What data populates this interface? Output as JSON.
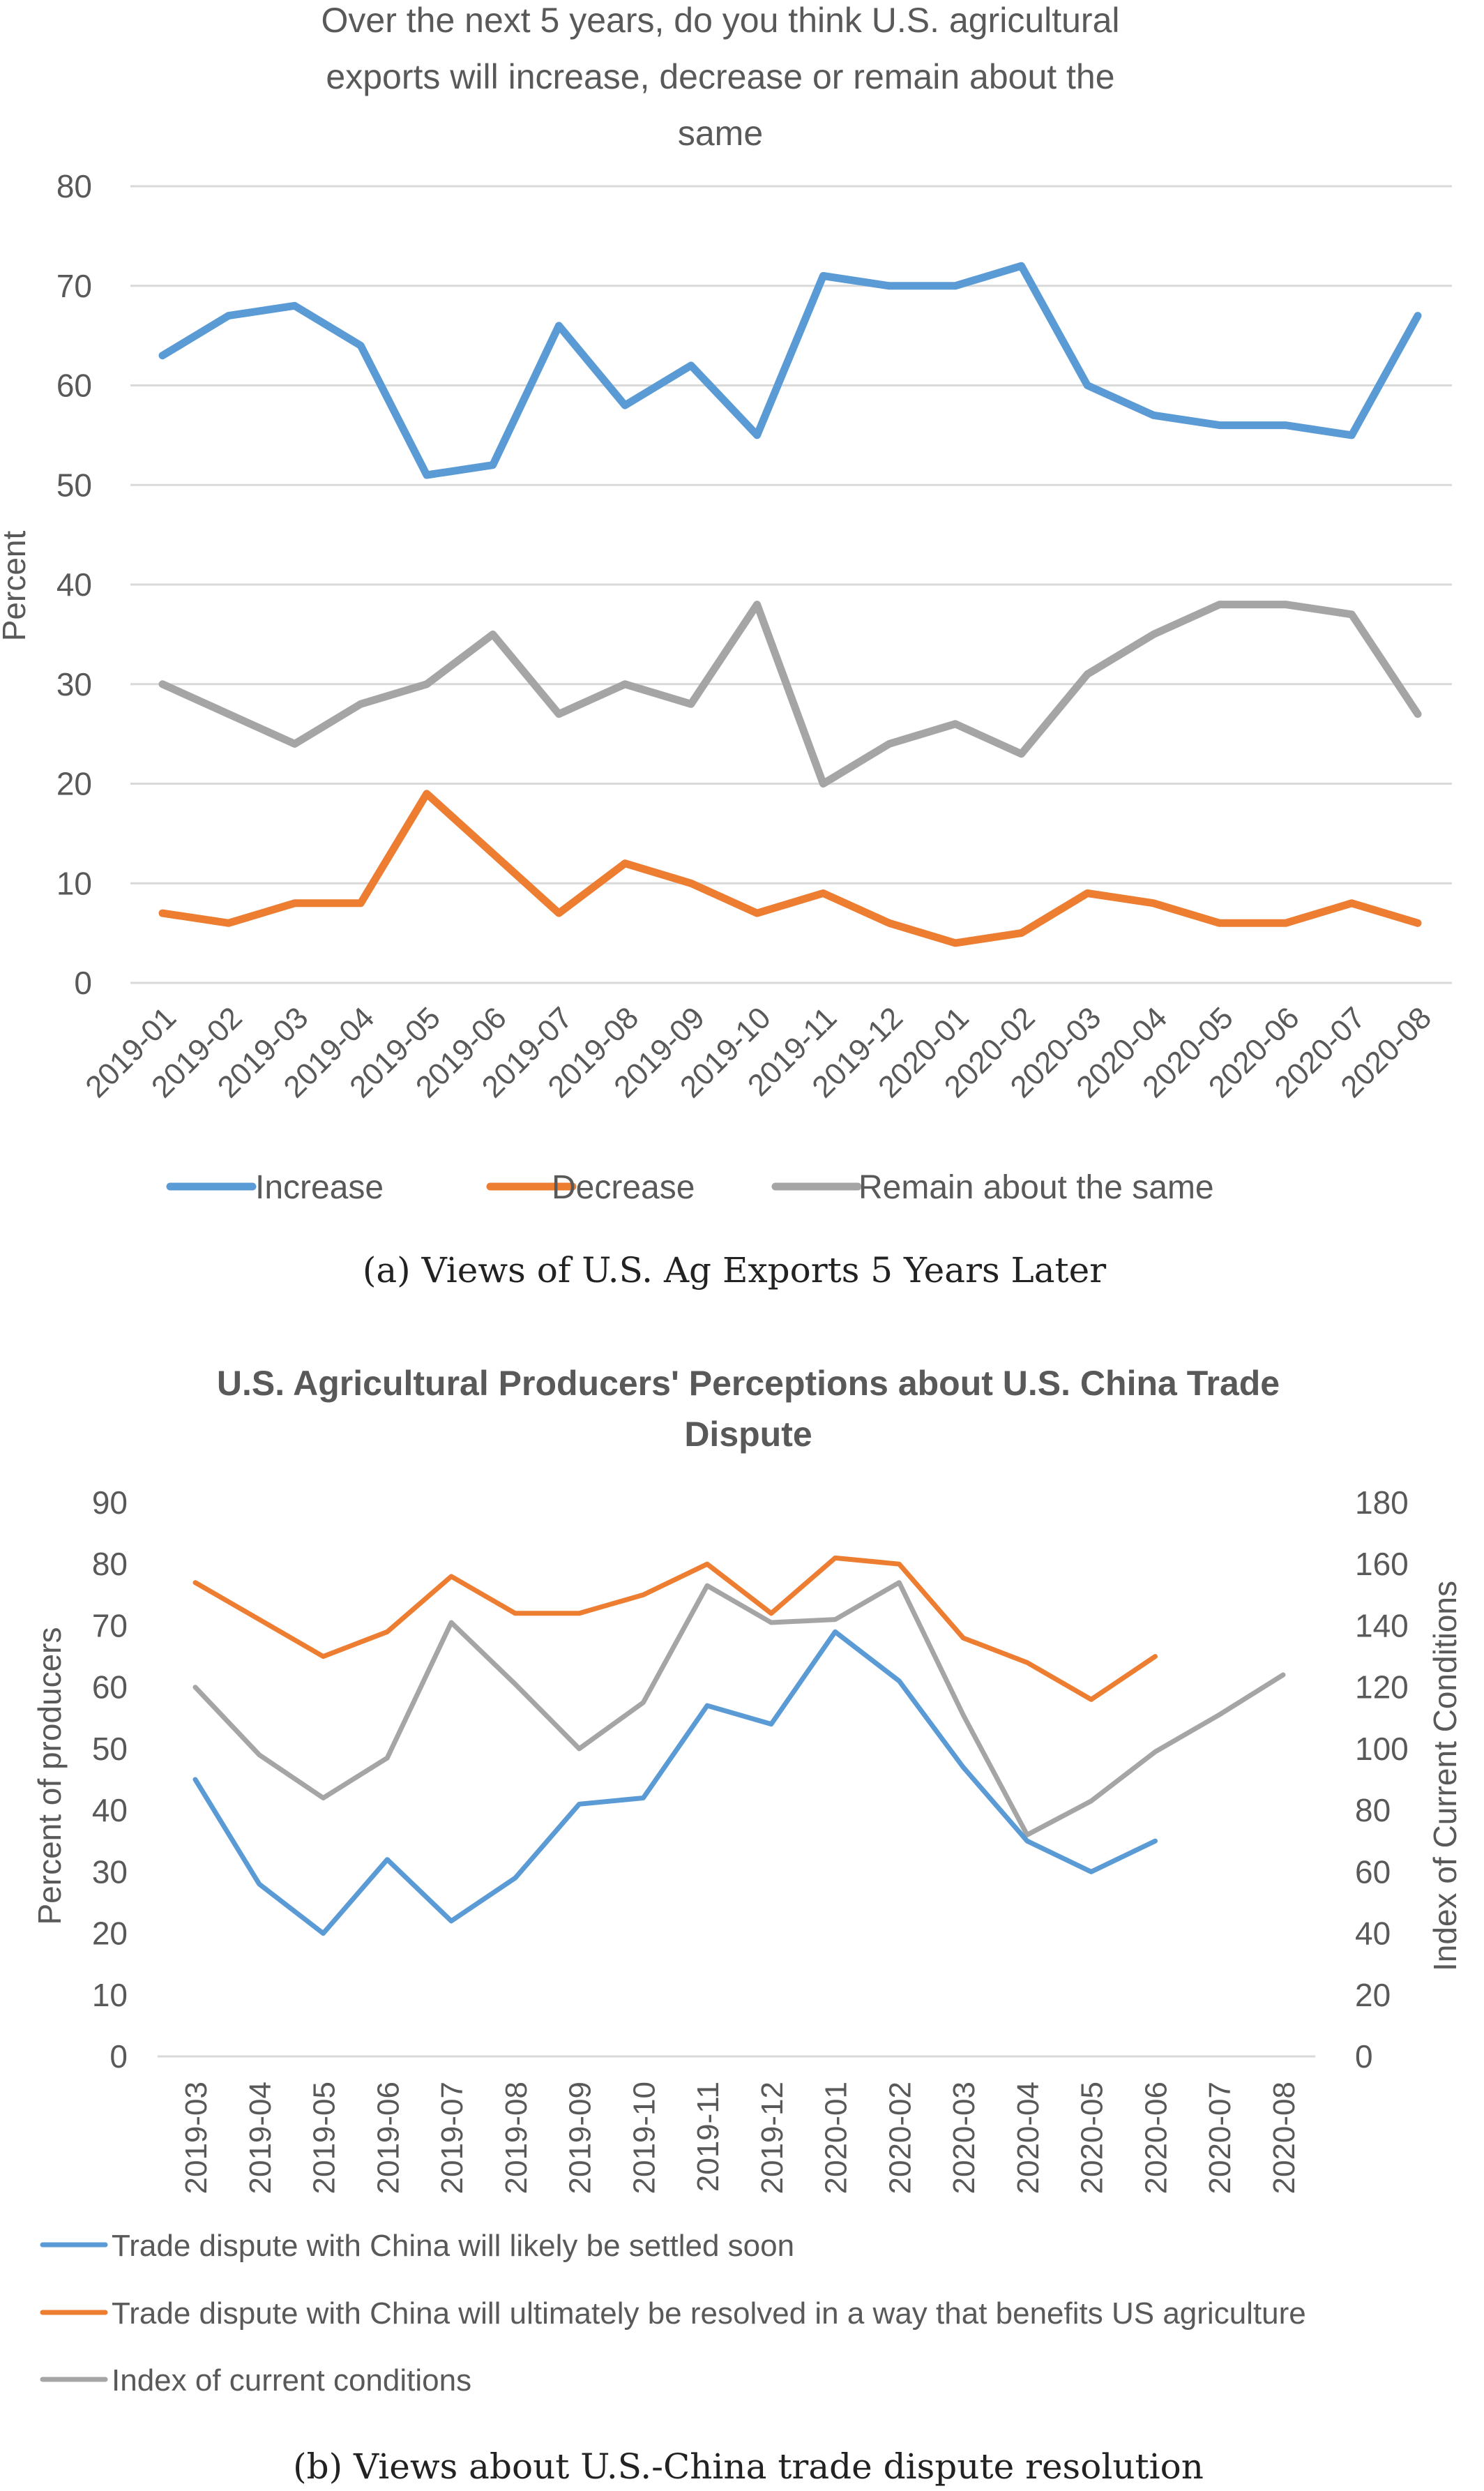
{
  "chart_data": [
    {
      "type": "line",
      "title_lines": [
        "Over the next 5 years, do you think U.S. agricultural",
        "exports will increase, decrease or remain about the",
        "same"
      ],
      "ylabel": "Percent",
      "ylim": [
        0,
        80
      ],
      "yticks": [
        "0",
        "10",
        "20",
        "30",
        "40",
        "50",
        "60",
        "70",
        "80"
      ],
      "categories": [
        "2019-01",
        "2019-02",
        "2019-03",
        "2019-04",
        "2019-05",
        "2019-06",
        "2019-07",
        "2019-08",
        "2019-09",
        "2019-10",
        "2019-11",
        "2019-12",
        "2020-01",
        "2020-02",
        "2020-03",
        "2020-04",
        "2020-05",
        "2020-06",
        "2020-07",
        "2020-08"
      ],
      "series": [
        {
          "name": "Increase",
          "color": "#5b9bd5",
          "values": [
            63,
            67,
            68,
            64,
            51,
            52,
            66,
            58,
            62,
            55,
            71,
            70,
            70,
            72,
            60,
            57,
            56,
            56,
            55,
            67
          ]
        },
        {
          "name": "Decrease",
          "color": "#ed7d31",
          "values": [
            7,
            6,
            8,
            8,
            19,
            13,
            7,
            12,
            10,
            7,
            9,
            6,
            4,
            5,
            9,
            8,
            6,
            6,
            8,
            6
          ]
        },
        {
          "name": "Remain about the same",
          "color": "#a5a5a5",
          "values": [
            30,
            27,
            24,
            28,
            30,
            35,
            27,
            30,
            28,
            38,
            20,
            24,
            26,
            23,
            31,
            35,
            38,
            38,
            37,
            27
          ]
        }
      ],
      "legend_position": "bottom",
      "grid": true,
      "caption": "(a) Views of U.S. Ag Exports 5 Years Later"
    },
    {
      "type": "line",
      "title_lines": [
        "U.S. Agricultural Producers' Perceptions about U.S. China Trade",
        "Dispute"
      ],
      "ylabel": "Percent of producers",
      "ylabel_right": "Index of Current Conditions",
      "ylim": [
        0,
        90
      ],
      "ylim_right": [
        0,
        180
      ],
      "yticks": [
        "0",
        "10",
        "20",
        "30",
        "40",
        "50",
        "60",
        "70",
        "80",
        "90"
      ],
      "yticks_right": [
        "0",
        "20",
        "40",
        "60",
        "80",
        "100",
        "120",
        "140",
        "160",
        "180"
      ],
      "categories": [
        "2019-03",
        "2019-04",
        "2019-05",
        "2019-06",
        "2019-07",
        "2019-08",
        "2019-09",
        "2019-10",
        "2019-11",
        "2019-12",
        "2020-01",
        "2020-02",
        "2020-03",
        "2020-04",
        "2020-05",
        "2020-06",
        "2020-07",
        "2020-08"
      ],
      "series": [
        {
          "name": "Trade dispute with China will likely be settled soon",
          "color": "#5b9bd5",
          "axis": "left",
          "values": [
            45,
            28,
            20,
            32,
            22,
            29,
            41,
            42,
            57,
            54,
            69,
            61,
            47,
            35,
            30,
            35,
            null,
            null
          ]
        },
        {
          "name": "Trade dispute with China will ultimately be resolved in a way that benefits US agriculture",
          "color": "#ed7d31",
          "axis": "left",
          "values": [
            77,
            71,
            65,
            69,
            78,
            72,
            72,
            75,
            80,
            72,
            81,
            80,
            68,
            64,
            58,
            65,
            null,
            null
          ]
        },
        {
          "name": "Index of current conditions",
          "color": "#a5a5a5",
          "axis": "right",
          "values": [
            120,
            98,
            84,
            97,
            141,
            121,
            100,
            115,
            153,
            141,
            142,
            154,
            111,
            72,
            83,
            99,
            111,
            124
          ]
        }
      ],
      "legend_position": "bottom",
      "grid": false,
      "caption": "(b) Views about U.S.-China trade dispute resolution"
    }
  ]
}
